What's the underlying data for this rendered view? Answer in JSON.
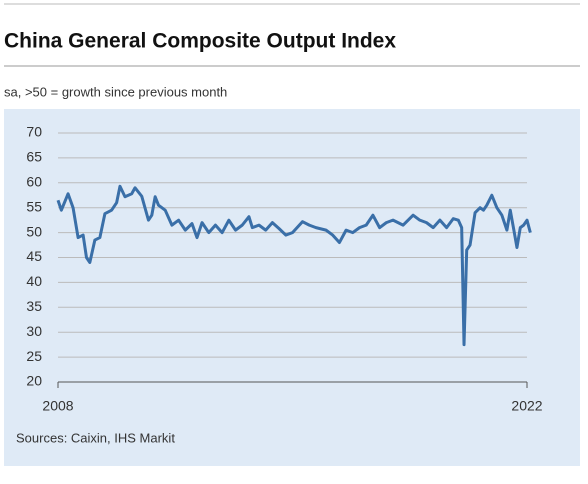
{
  "chart_data": {
    "type": "line",
    "title": "China General Composite Output Index",
    "subtitle": "sa, >50 = growth since previous month",
    "source": "Sources: Caixin, IHS Markit",
    "x": [
      2008.0,
      2008.1,
      2008.3,
      2008.45,
      2008.6,
      2008.75,
      2008.85,
      2008.95,
      2009.1,
      2009.25,
      2009.4,
      2009.6,
      2009.75,
      2009.85,
      2010.0,
      2010.2,
      2010.3,
      2010.5,
      2010.7,
      2010.8,
      2010.9,
      2011.0,
      2011.2,
      2011.4,
      2011.6,
      2011.8,
      2012.0,
      2012.15,
      2012.3,
      2012.5,
      2012.7,
      2012.9,
      2013.1,
      2013.3,
      2013.5,
      2013.7,
      2013.8,
      2014.0,
      2014.2,
      2014.4,
      2014.6,
      2014.8,
      2015.0,
      2015.3,
      2015.5,
      2015.7,
      2016.0,
      2016.2,
      2016.4,
      2016.6,
      2016.8,
      2017.0,
      2017.2,
      2017.4,
      2017.6,
      2017.8,
      2018.0,
      2018.3,
      2018.6,
      2018.8,
      2019.0,
      2019.2,
      2019.4,
      2019.6,
      2019.8,
      2019.95,
      2020.05,
      2020.12,
      2020.2,
      2020.3,
      2020.45,
      2020.6,
      2020.7,
      2020.8,
      2020.95,
      2021.1,
      2021.25,
      2021.4,
      2021.5,
      2021.6,
      2021.7,
      2021.8,
      2021.9,
      2022.0,
      2022.1
    ],
    "series": [
      {
        "name": "Composite Output Index",
        "color": "#3a6fa8",
        "values": [
          56.5,
          54.5,
          57.8,
          55,
          49,
          49.5,
          45,
          44,
          48.5,
          49,
          53.8,
          54.5,
          56,
          59.3,
          57.2,
          57.8,
          59,
          57.3,
          52.5,
          53.5,
          57.2,
          55.5,
          54.5,
          51.5,
          52.5,
          50.5,
          51.8,
          49,
          52,
          50,
          51.5,
          50,
          52.5,
          50.5,
          51.5,
          53.2,
          51,
          51.5,
          50.5,
          52,
          50.8,
          49.5,
          50,
          52.2,
          51.5,
          51,
          50.5,
          49.5,
          48,
          50.5,
          50,
          51,
          51.5,
          53.5,
          51,
          52,
          52.5,
          51.5,
          53.5,
          52.5,
          52,
          51,
          52.5,
          51,
          52.8,
          52.5,
          51,
          27.5,
          46.5,
          47.5,
          54,
          55,
          54.5,
          55.5,
          57.5,
          55,
          53.5,
          50.5,
          54.5,
          50.8,
          47,
          51,
          51.5,
          52.5,
          50
        ]
      }
    ],
    "xlim": [
      2008,
      2022
    ],
    "xticks": [
      2008,
      2022
    ],
    "ylim": [
      20,
      70
    ],
    "yticks": [
      20,
      25,
      30,
      35,
      40,
      45,
      50,
      55,
      60,
      65,
      70
    ],
    "grid": true
  }
}
